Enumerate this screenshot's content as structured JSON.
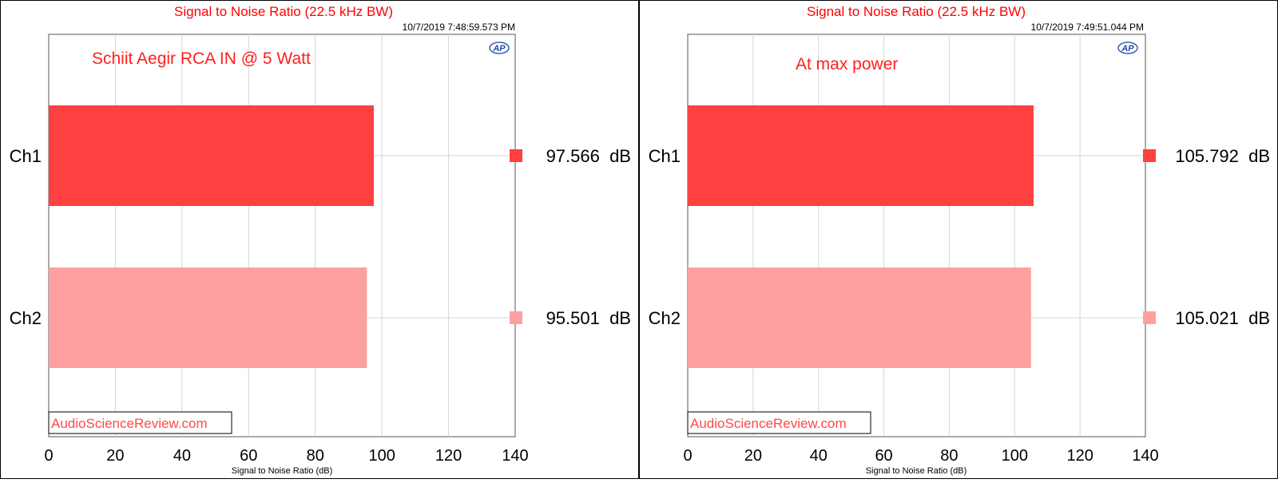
{
  "colors": {
    "ch1": "#ff4040",
    "ch2": "#ffa0a0",
    "title": "#ff0000",
    "annotation": "#ff2020",
    "watermark": "#ff4848"
  },
  "panels": [
    {
      "title": "Signal to Noise Ratio (22.5 kHz BW)",
      "timestamp": "10/7/2019 7:48:59.573 PM",
      "annotation": "Schiit Aegir RCA IN @ 5 Watt",
      "watermark": "AudioScienceReview.com",
      "logo_text": "AP",
      "xlabel": "Signal to Noise Ratio (dB)"
    },
    {
      "title": "Signal to Noise Ratio (22.5 kHz BW)",
      "timestamp": "10/7/2019 7:49:51.044 PM",
      "annotation": "At max power",
      "watermark": "AudioScienceReview.com",
      "logo_text": "AP",
      "xlabel": "Signal to Noise Ratio (dB)"
    }
  ],
  "chart_data": [
    {
      "type": "bar",
      "orientation": "horizontal",
      "title": "Signal to Noise Ratio (22.5 kHz BW)",
      "xlabel": "Signal to Noise Ratio (dB)",
      "xlim": [
        0,
        140
      ],
      "xticks": [
        0,
        20,
        40,
        60,
        80,
        100,
        120,
        140
      ],
      "categories": [
        "Ch1",
        "Ch2"
      ],
      "values": [
        97.566,
        95.501
      ],
      "value_labels": [
        "97.566  dB",
        "95.501  dB"
      ],
      "grid": true,
      "legend_placement": "right"
    },
    {
      "type": "bar",
      "orientation": "horizontal",
      "title": "Signal to Noise Ratio (22.5 kHz BW)",
      "xlabel": "Signal to Noise Ratio (dB)",
      "xlim": [
        0,
        140
      ],
      "xticks": [
        0,
        20,
        40,
        60,
        80,
        100,
        120,
        140
      ],
      "categories": [
        "Ch1",
        "Ch2"
      ],
      "values": [
        105.792,
        105.021
      ],
      "value_labels": [
        "105.792  dB",
        "105.021  dB"
      ],
      "grid": true,
      "legend_placement": "right"
    }
  ]
}
